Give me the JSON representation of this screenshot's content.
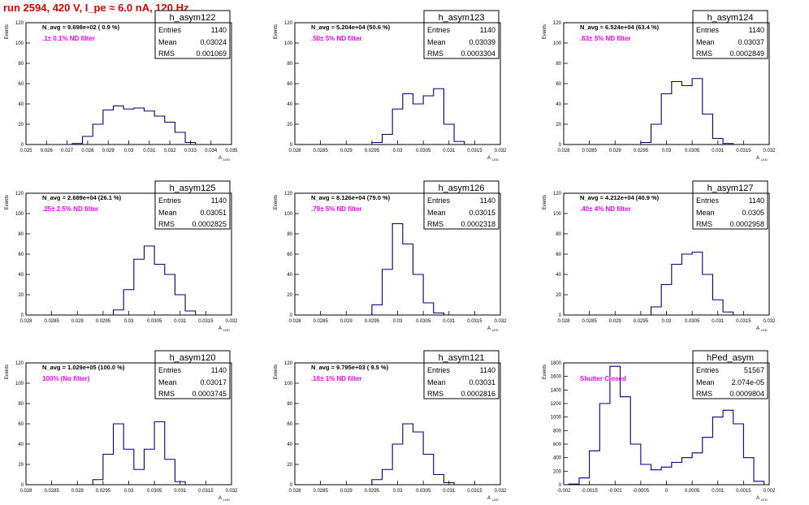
{
  "run_title": "run 2594,   420 V, I_pe ≈ 6.0 nA, 120 Hz",
  "stats_labels": {
    "entries": "Entries",
    "mean": "Mean",
    "rms": "RMS"
  },
  "y_axis_label": "Events",
  "x_axis_label": "A",
  "x_axis_subscript": "LED",
  "chart_data": [
    {
      "type": "bar",
      "hist": "h_asym122",
      "navg": "N_avg = 9.698e+02 ( 0.9 %)",
      "note": ".1± 0.1% ND filter",
      "note_color": "#ff00ff",
      "entries": "1140",
      "mean": "0.03024",
      "rms": "0.001069",
      "xlim": [
        0.025,
        0.035
      ],
      "xticks": [
        "0.025",
        "0.026",
        "0.027",
        "0.028",
        "0.029",
        "0.03",
        "0.031",
        "0.032",
        "0.033",
        "0.034",
        "0.035"
      ],
      "ylim": [
        0,
        120
      ],
      "yticks": [
        "0",
        "20",
        "40",
        "60",
        "80",
        "100",
        "120"
      ],
      "x": [
        0.0275,
        0.028,
        0.0285,
        0.029,
        0.0295,
        0.03,
        0.0305,
        0.031,
        0.0315,
        0.032,
        0.0325,
        0.033
      ],
      "values": [
        1,
        8,
        20,
        34,
        38,
        35,
        36,
        33,
        28,
        22,
        12,
        2
      ]
    },
    {
      "type": "bar",
      "hist": "h_asym123",
      "navg": "N_avg = 5.204e+04 (50.6 %)",
      "note": ".50± 5% ND filter",
      "note_color": "#ff00ff",
      "entries": "1140",
      "mean": "0.03039",
      "rms": "0.0003304",
      "xlim": [
        0.028,
        0.032
      ],
      "xticks": [
        "0.028",
        "0.0285",
        "0.029",
        "0.0295",
        "0.03",
        "0.0305",
        "0.031",
        "0.0315",
        "0.032"
      ],
      "ylim": [
        0,
        120
      ],
      "yticks": [
        "0",
        "20",
        "40",
        "60",
        "80",
        "100",
        "120"
      ],
      "x": [
        0.0296,
        0.0298,
        0.03,
        0.0302,
        0.0304,
        0.0306,
        0.0308,
        0.031,
        0.0312
      ],
      "values": [
        2,
        10,
        35,
        50,
        40,
        48,
        55,
        20,
        3
      ]
    },
    {
      "type": "bar",
      "hist": "h_asym124",
      "navg": "N_avg = 6.524e+04 (63.4 %)",
      "note": ".63± 5% ND filter",
      "note_color": "#ff00ff",
      "entries": "1140",
      "mean": "0.03037",
      "rms": "0.0002849",
      "xlim": [
        0.028,
        0.032
      ],
      "xticks": [
        "0.028",
        "0.0285",
        "0.029",
        "0.0295",
        "0.03",
        "0.0305",
        "0.031",
        "0.0315",
        "0.032"
      ],
      "ylim": [
        0,
        120
      ],
      "yticks": [
        "0",
        "20",
        "40",
        "60",
        "80",
        "100",
        "120"
      ],
      "x": [
        0.0296,
        0.0298,
        0.03,
        0.0302,
        0.0304,
        0.0306,
        0.0308,
        0.031,
        0.0312
      ],
      "values": [
        2,
        20,
        50,
        62,
        58,
        65,
        30,
        6,
        1
      ]
    },
    {
      "type": "bar",
      "hist": "h_asym125",
      "navg": "N_avg = 2.689e+04 (26.1 %)",
      "note": ".25± 2.5% ND filter",
      "note_color": "#ff00ff",
      "entries": "1140",
      "mean": "0.03051",
      "rms": "0.0002825",
      "xlim": [
        0.028,
        0.032
      ],
      "xticks": [
        "0.028",
        "0.0285",
        "0.029",
        "0.0295",
        "0.03",
        "0.0305",
        "0.031",
        "0.0315",
        "0.032"
      ],
      "ylim": [
        0,
        120
      ],
      "yticks": [
        "0",
        "20",
        "40",
        "60",
        "80",
        "100",
        "120"
      ],
      "x": [
        0.0298,
        0.03,
        0.0302,
        0.0304,
        0.0306,
        0.0308,
        0.031,
        0.0312
      ],
      "values": [
        5,
        25,
        55,
        68,
        50,
        40,
        20,
        4
      ]
    },
    {
      "type": "bar",
      "hist": "h_asym126",
      "navg": "N_avg = 8.126e+04 (79.0 %)",
      "note": ".79± 5% ND filter",
      "note_color": "#ff00ff",
      "entries": "1140",
      "mean": "0.03015",
      "rms": "0.0002318",
      "xlim": [
        0.028,
        0.032
      ],
      "xticks": [
        "0.028",
        "0.0285",
        "0.029",
        "0.0295",
        "0.03",
        "0.0305",
        "0.031",
        "0.0315",
        "0.032"
      ],
      "ylim": [
        0,
        120
      ],
      "yticks": [
        "0",
        "20",
        "40",
        "60",
        "80",
        "100",
        "120"
      ],
      "x": [
        0.0296,
        0.0298,
        0.03,
        0.0302,
        0.0304,
        0.0306,
        0.0308
      ],
      "values": [
        10,
        45,
        90,
        70,
        40,
        12,
        2
      ]
    },
    {
      "type": "bar",
      "hist": "h_asym127",
      "navg": "N_avg = 4.212e+04 (40.9 %)",
      "note": ".40± 4% ND filter",
      "note_color": "#ff00ff",
      "entries": "1140",
      "mean": "0.0305",
      "rms": "0.0002958",
      "xlim": [
        0.028,
        0.032
      ],
      "xticks": [
        "0.028",
        "0.0285",
        "0.029",
        "0.0295",
        "0.03",
        "0.0305",
        "0.031",
        "0.0315",
        "0.032"
      ],
      "ylim": [
        0,
        120
      ],
      "yticks": [
        "0",
        "20",
        "40",
        "60",
        "80",
        "100",
        "120"
      ],
      "x": [
        0.0298,
        0.03,
        0.0302,
        0.0304,
        0.0306,
        0.0308,
        0.031,
        0.0312
      ],
      "values": [
        8,
        30,
        50,
        60,
        62,
        40,
        15,
        3
      ]
    },
    {
      "type": "bar",
      "hist": "h_asym120",
      "navg": "N_avg = 1.029e+05 (100.0 %)",
      "note": "100% (No filter)",
      "note_color": "#ff00ff",
      "entries": "1140",
      "mean": "0.03017",
      "rms": "0.0003745",
      "xlim": [
        0.028,
        0.032
      ],
      "xticks": [
        "0.028",
        "0.0285",
        "0.029",
        "0.0295",
        "0.03",
        "0.0305",
        "0.031",
        "0.0315",
        "0.032"
      ],
      "ylim": [
        0,
        120
      ],
      "yticks": [
        "0",
        "20",
        "40",
        "60",
        "80",
        "100",
        "120"
      ],
      "x": [
        0.0294,
        0.0296,
        0.0298,
        0.03,
        0.0302,
        0.0304,
        0.0306,
        0.0308,
        0.031
      ],
      "values": [
        5,
        30,
        60,
        35,
        15,
        35,
        62,
        25,
        3
      ]
    },
    {
      "type": "bar",
      "hist": "h_asym121",
      "navg": "N_avg = 9.795e+03 ( 9.5 %)",
      "note": ".10± 1% ND filter",
      "note_color": "#ff00ff",
      "entries": "1140",
      "mean": "0.03031",
      "rms": "0.0002816",
      "xlim": [
        0.028,
        0.032
      ],
      "xticks": [
        "0.028",
        "0.0285",
        "0.029",
        "0.0295",
        "0.03",
        "0.0305",
        "0.031",
        "0.0315",
        "0.032"
      ],
      "ylim": [
        0,
        120
      ],
      "yticks": [
        "0",
        "20",
        "40",
        "60",
        "80",
        "100",
        "120"
      ],
      "x": [
        0.0296,
        0.0298,
        0.03,
        0.0302,
        0.0304,
        0.0306,
        0.0308,
        0.031
      ],
      "values": [
        5,
        15,
        40,
        60,
        52,
        30,
        10,
        2
      ]
    },
    {
      "type": "bar",
      "hist": "hPed_asym",
      "navg": "",
      "note": "Shutter Closed",
      "note_color": "#ff00ff",
      "entries": "51567",
      "mean": "2.074e-05",
      "rms": "0.0009804",
      "xlim": [
        -0.002,
        0.002
      ],
      "xticks": [
        "-0.002",
        "-0.0015",
        "-0.001",
        "-0.0005",
        "0",
        "0.0005",
        "0.001",
        "0.0015",
        "0.002"
      ],
      "ylim": [
        0,
        1800
      ],
      "yticks": [
        "0",
        "200",
        "400",
        "600",
        "800",
        "1000",
        "1200",
        "1400",
        "1600",
        "1800"
      ],
      "x": [
        -0.0018,
        -0.0016,
        -0.0014,
        -0.0012,
        -0.001,
        -0.0008,
        -0.0006,
        -0.0004,
        -0.0002,
        0,
        0.0002,
        0.0004,
        0.0006,
        0.0008,
        0.001,
        0.0012,
        0.0014,
        0.0016,
        0.0018
      ],
      "values": [
        10,
        100,
        500,
        1200,
        1750,
        1300,
        600,
        300,
        220,
        260,
        330,
        400,
        470,
        700,
        1000,
        1100,
        900,
        400,
        50
      ]
    }
  ]
}
